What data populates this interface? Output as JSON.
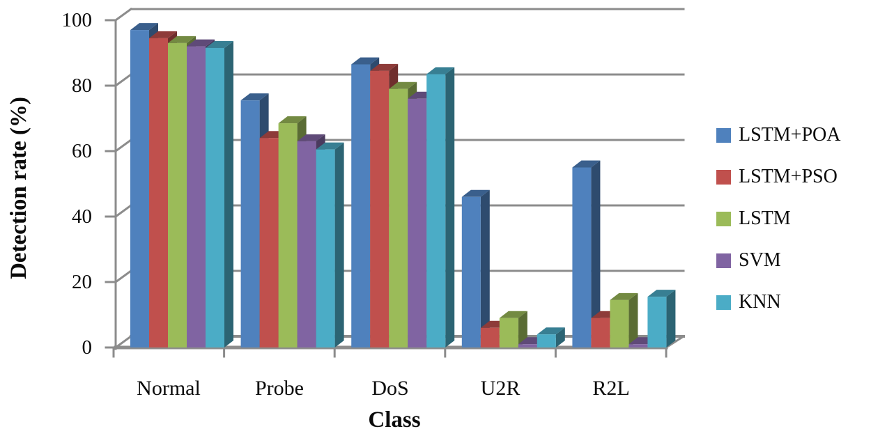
{
  "chart_data": {
    "type": "bar",
    "style": "3d-clustered-column",
    "title": "",
    "xlabel": "Class",
    "ylabel": "Detection rate (%)",
    "categories": [
      "Normal",
      "Probe",
      "DoS",
      "U2R",
      "R2L"
    ],
    "yticks": [
      0,
      20,
      40,
      60,
      80,
      100
    ],
    "ylim": [
      0,
      100
    ],
    "grid": true,
    "legend_position": "right",
    "axis_color": "#8C8C8C",
    "background_color": "#FFFFFF",
    "series": [
      {
        "name": "LSTM+POA",
        "color": "#4F81BD",
        "values": [
          97,
          75.5,
          86.5,
          46,
          55
        ]
      },
      {
        "name": "LSTM+PSO",
        "color": "#C0504D",
        "values": [
          94.5,
          64,
          84.5,
          6,
          9
        ]
      },
      {
        "name": "LSTM",
        "color": "#9BBB59",
        "values": [
          93,
          68.5,
          79,
          9,
          14.5
        ]
      },
      {
        "name": "SVM",
        "color": "#8064A2",
        "values": [
          92,
          63,
          76,
          1,
          1
        ]
      },
      {
        "name": "KNN",
        "color": "#4BACC6",
        "values": [
          91.5,
          60.5,
          83.5,
          4,
          15.5
        ]
      }
    ]
  }
}
